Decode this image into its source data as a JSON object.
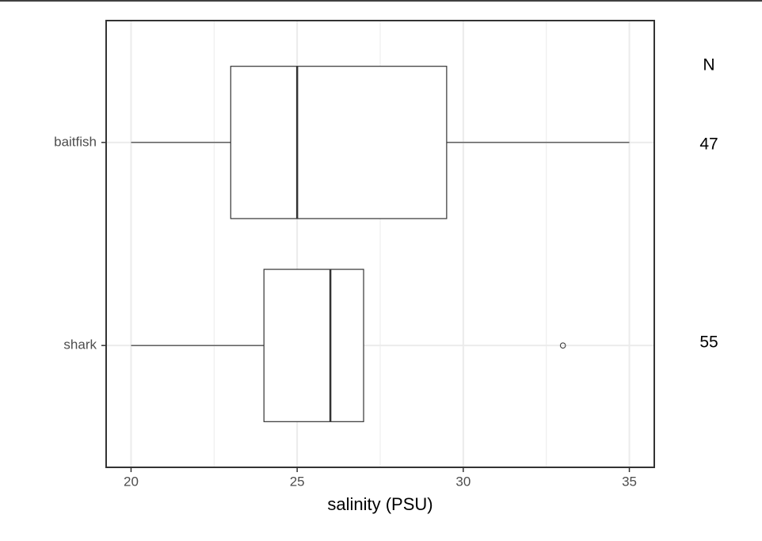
{
  "chart_data": {
    "type": "box",
    "categories": [
      "baitfish",
      "shark"
    ],
    "boxes": [
      {
        "whisker_low": 20,
        "q1": 23,
        "median": 25,
        "q3": 29.5,
        "whisker_high": 35,
        "outliers": []
      },
      {
        "whisker_low": 20,
        "q1": 24,
        "median": 26,
        "q3": 27,
        "whisker_high": 27,
        "outliers": [
          33
        ]
      }
    ],
    "xlabel": "salinity (PSU)",
    "xlim": [
      19.25,
      35.75
    ],
    "xticks": [
      20,
      25,
      30,
      35
    ],
    "minor_xticks": [
      22.5,
      27.5,
      32.5
    ],
    "grid": true,
    "n_header": "N",
    "n_values": [
      47,
      55
    ]
  }
}
